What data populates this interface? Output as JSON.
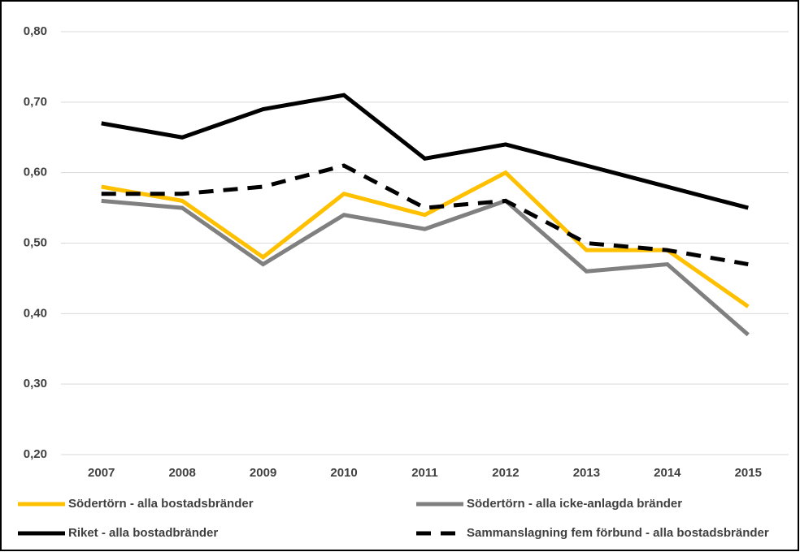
{
  "chart_data": {
    "type": "line",
    "categories": [
      "2007",
      "2008",
      "2009",
      "2010",
      "2011",
      "2012",
      "2013",
      "2014",
      "2015"
    ],
    "series": [
      {
        "name": "Södertörn - alla bostadsbränder",
        "color": "#ffc000",
        "values": [
          0.58,
          0.56,
          0.48,
          0.57,
          0.54,
          0.6,
          0.49,
          0.49,
          0.41
        ]
      },
      {
        "name": "Södertörn - alla icke-anlagda bränder",
        "color": "#808080",
        "values": [
          0.56,
          0.55,
          0.47,
          0.54,
          0.52,
          0.56,
          0.46,
          0.47,
          0.37
        ]
      },
      {
        "name": "Riket - alla bostadbränder",
        "color": "#000000",
        "values": [
          0.67,
          0.65,
          0.69,
          0.71,
          0.62,
          0.64,
          0.61,
          0.58,
          0.55
        ]
      },
      {
        "name": "Sammanslagning fem förbund - alla bostadsbränder",
        "color": "#000000",
        "dashed": true,
        "values": [
          0.57,
          0.57,
          0.58,
          0.61,
          0.55,
          0.56,
          0.5,
          0.49,
          0.47
        ]
      }
    ],
    "ylim": [
      0.2,
      0.8
    ],
    "yticks": [
      {
        "value": 0.2,
        "label": "0,20"
      },
      {
        "value": 0.3,
        "label": "0,30"
      },
      {
        "value": 0.4,
        "label": "0,40"
      },
      {
        "value": 0.5,
        "label": "0,50"
      },
      {
        "value": 0.6,
        "label": "0,60"
      },
      {
        "value": 0.7,
        "label": "0,70"
      },
      {
        "value": 0.8,
        "label": "0,80"
      }
    ],
    "grid": true,
    "legend": "bottom"
  }
}
